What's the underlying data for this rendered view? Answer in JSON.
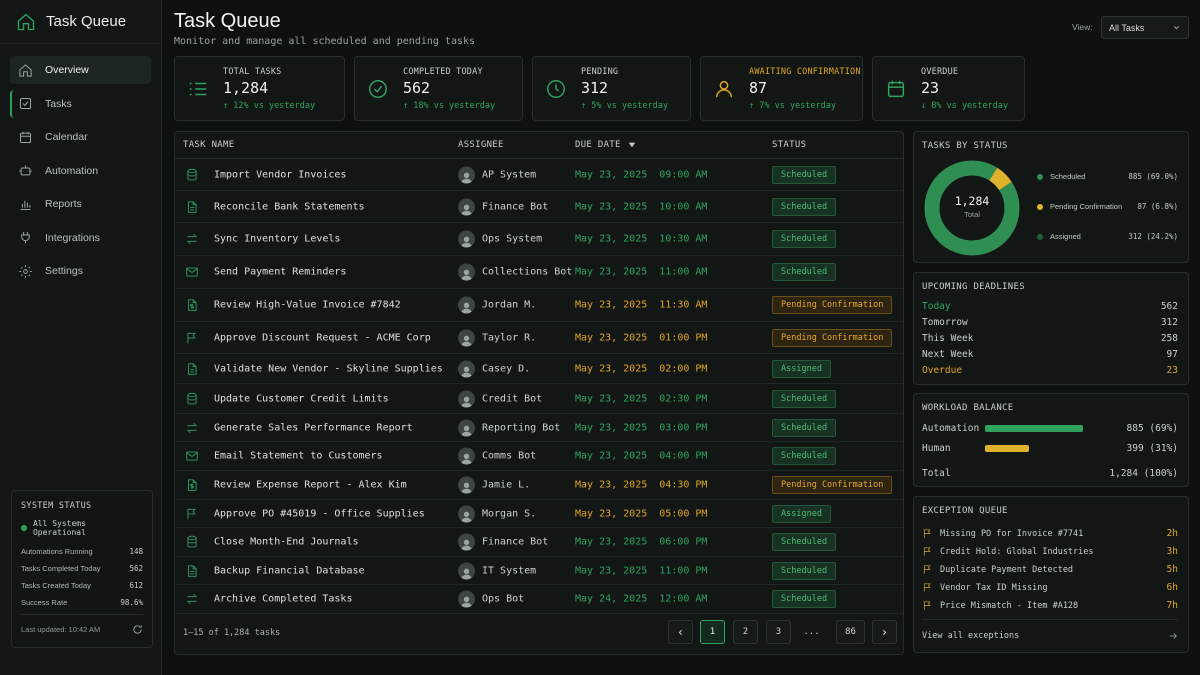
{
  "app": {
    "title": "Task Queue"
  },
  "sidebar": {
    "items": [
      {
        "label": "Overview",
        "icon": "home-icon"
      },
      {
        "label": "Tasks",
        "icon": "checklist-icon"
      },
      {
        "label": "Calendar",
        "icon": "calendar-icon"
      },
      {
        "label": "Automation",
        "icon": "robot-icon"
      },
      {
        "label": "Reports",
        "icon": "bar-chart-icon"
      },
      {
        "label": "Integrations",
        "icon": "plug-icon"
      },
      {
        "label": "Settings",
        "icon": "gear-icon"
      }
    ],
    "system_status": {
      "title": "SYSTEM STATUS",
      "status": "All Systems Operational",
      "rows": [
        {
          "label": "Automations Running",
          "value": "148"
        },
        {
          "label": "Tasks Completed Today",
          "value": "562"
        },
        {
          "label": "Tasks Created Today",
          "value": "612"
        },
        {
          "label": "Success Rate",
          "value": "98.6%"
        }
      ],
      "last_updated": "Last updated: 10:42 AM"
    }
  },
  "header": {
    "title": "Task Queue",
    "subtitle": "Monitor and manage all scheduled and pending tasks",
    "view_label": "View:",
    "view_value": "All Tasks"
  },
  "kpis": [
    {
      "label": "TOTAL TASKS",
      "value": "1,284",
      "change": "↑ 12% vs yesterday",
      "icon": "list-icon"
    },
    {
      "label": "COMPLETED TODAY",
      "value": "562",
      "change": "↑ 18% vs yesterday",
      "icon": "check-circle-icon"
    },
    {
      "label": "PENDING",
      "value": "312",
      "change": "↑ 5% vs yesterday",
      "icon": "clock-icon"
    },
    {
      "label": "AWAITING CONFIRMATION",
      "value": "87",
      "change": "↑ 7% vs yesterday",
      "icon": "user-icon"
    },
    {
      "label": "OVERDUE",
      "value": "23",
      "change": "↓ 8% vs yesterday",
      "icon": "calendar-icon"
    }
  ],
  "table": {
    "headers": {
      "name": "TASK NAME",
      "assignee": "ASSIGNEE",
      "due": "DUE DATE",
      "status": "STATUS"
    },
    "rows": [
      {
        "icon": "database-icon",
        "name": "Import Vendor Invoices",
        "assignee": "AP System",
        "due": "May 23, 2025  09:00 AM",
        "status": "Scheduled"
      },
      {
        "icon": "document-icon",
        "name": "Reconcile Bank Statements",
        "assignee": "Finance Bot",
        "due": "May 23, 2025  10:00 AM",
        "status": "Scheduled"
      },
      {
        "icon": "sync-arrows-icon",
        "name": "Sync Inventory Levels",
        "assignee": "Ops System",
        "due": "May 23, 2025  10:30 AM",
        "status": "Scheduled"
      },
      {
        "icon": "mail-icon",
        "name": "Send Payment Reminders",
        "assignee": "Collections Bot",
        "due": "May 23, 2025  11:00 AM",
        "status": "Scheduled"
      },
      {
        "icon": "invoice-icon",
        "name": "Review High-Value Invoice #7842",
        "assignee": "Jordan M.",
        "due": "May 23, 2025  11:30 AM",
        "status": "Pending Confirmation"
      },
      {
        "icon": "flag-icon",
        "name": "Approve Discount Request - ACME Corp",
        "assignee": "Taylor R.",
        "due": "May 23, 2025  01:00 PM",
        "status": "Pending Confirmation"
      },
      {
        "icon": "document-icon",
        "name": "Validate New Vendor - Skyline Supplies",
        "assignee": "Casey D.",
        "due": "May 23, 2025  02:00 PM",
        "status": "Assigned"
      },
      {
        "icon": "database-icon",
        "name": "Update Customer Credit Limits",
        "assignee": "Credit Bot",
        "due": "May 23, 2025  02:30 PM",
        "status": "Scheduled"
      },
      {
        "icon": "sync-arrows-icon",
        "name": "Generate Sales Performance Report",
        "assignee": "Reporting Bot",
        "due": "May 23, 2025  03:00 PM",
        "status": "Scheduled"
      },
      {
        "icon": "mail-icon",
        "name": "Email Statement to Customers",
        "assignee": "Comms Bot",
        "due": "May 23, 2025  04:00 PM",
        "status": "Scheduled"
      },
      {
        "icon": "invoice-icon",
        "name": "Review Expense Report - Alex Kim",
        "assignee": "Jamie L.",
        "due": "May 23, 2025  04:30 PM",
        "status": "Pending Confirmation"
      },
      {
        "icon": "flag-icon",
        "name": "Approve PO #45019 - Office Supplies",
        "assignee": "Morgan S.",
        "due": "May 23, 2025  05:00 PM",
        "status": "Assigned"
      },
      {
        "icon": "database-icon",
        "name": "Close Month-End Journals",
        "assignee": "Finance Bot",
        "due": "May 23, 2025  06:00 PM",
        "status": "Scheduled"
      },
      {
        "icon": "document-icon",
        "name": "Backup Financial Database",
        "assignee": "IT System",
        "due": "May 23, 2025  11:00 PM",
        "status": "Scheduled"
      },
      {
        "icon": "sync-arrows-icon",
        "name": "Archive Completed Tasks",
        "assignee": "Ops Bot",
        "due": "May 24, 2025  12:00 AM",
        "status": "Scheduled"
      }
    ],
    "footer": "1–15 of 1,284 tasks",
    "pages": [
      "1",
      "2",
      "3",
      "...",
      "86"
    ]
  },
  "status_chart": {
    "title": "TASKS BY STATUS",
    "total": "1,284",
    "total_label": "Total",
    "items": [
      {
        "label": "Scheduled",
        "value": "885 (69.0%)",
        "color": "#2f8f52"
      },
      {
        "label": "Pending Confirmation",
        "value": "87 (6.8%)",
        "color": "#e0b22b"
      },
      {
        "label": "Assigned",
        "value": "312 (24.2%)",
        "color": "#1f5e37"
      }
    ]
  },
  "chart_data": {
    "type": "pie",
    "title": "TASKS BY STATUS",
    "categories": [
      "Scheduled",
      "Pending Confirmation",
      "Assigned"
    ],
    "values": [
      885,
      87,
      312
    ],
    "center_value": "1,284",
    "center_label": "Total"
  },
  "deadlines": {
    "title": "UPCOMING DEADLINES",
    "rows": [
      {
        "label": "Today",
        "value": "562"
      },
      {
        "label": "Tomorrow",
        "value": "312"
      },
      {
        "label": "This Week",
        "value": "258"
      },
      {
        "label": "Next Week",
        "value": "97"
      },
      {
        "label": "Overdue",
        "value": "23"
      }
    ]
  },
  "workload": {
    "title": "WORKLOAD BALANCE",
    "rows": [
      {
        "label": "Automation",
        "value": "885 (69%)",
        "fraction": 0.69,
        "color": "#2fa35e"
      },
      {
        "label": "Human",
        "value": "399 (31%)",
        "fraction": 0.31,
        "color": "#e0b22b"
      }
    ],
    "total_label": "Total",
    "total_value": "1,284 (100%)"
  },
  "exceptions": {
    "title": "EXCEPTION QUEUE",
    "rows": [
      {
        "label": "Missing PO for Invoice #7741",
        "age": "2h"
      },
      {
        "label": "Credit Hold: Global Industries",
        "age": "3h"
      },
      {
        "label": "Duplicate Payment Detected",
        "age": "5h"
      },
      {
        "label": "Vendor Tax ID Missing",
        "age": "6h"
      },
      {
        "label": "Price Mismatch - Item #A128",
        "age": "7h"
      }
    ],
    "view_all": "View all exceptions"
  }
}
